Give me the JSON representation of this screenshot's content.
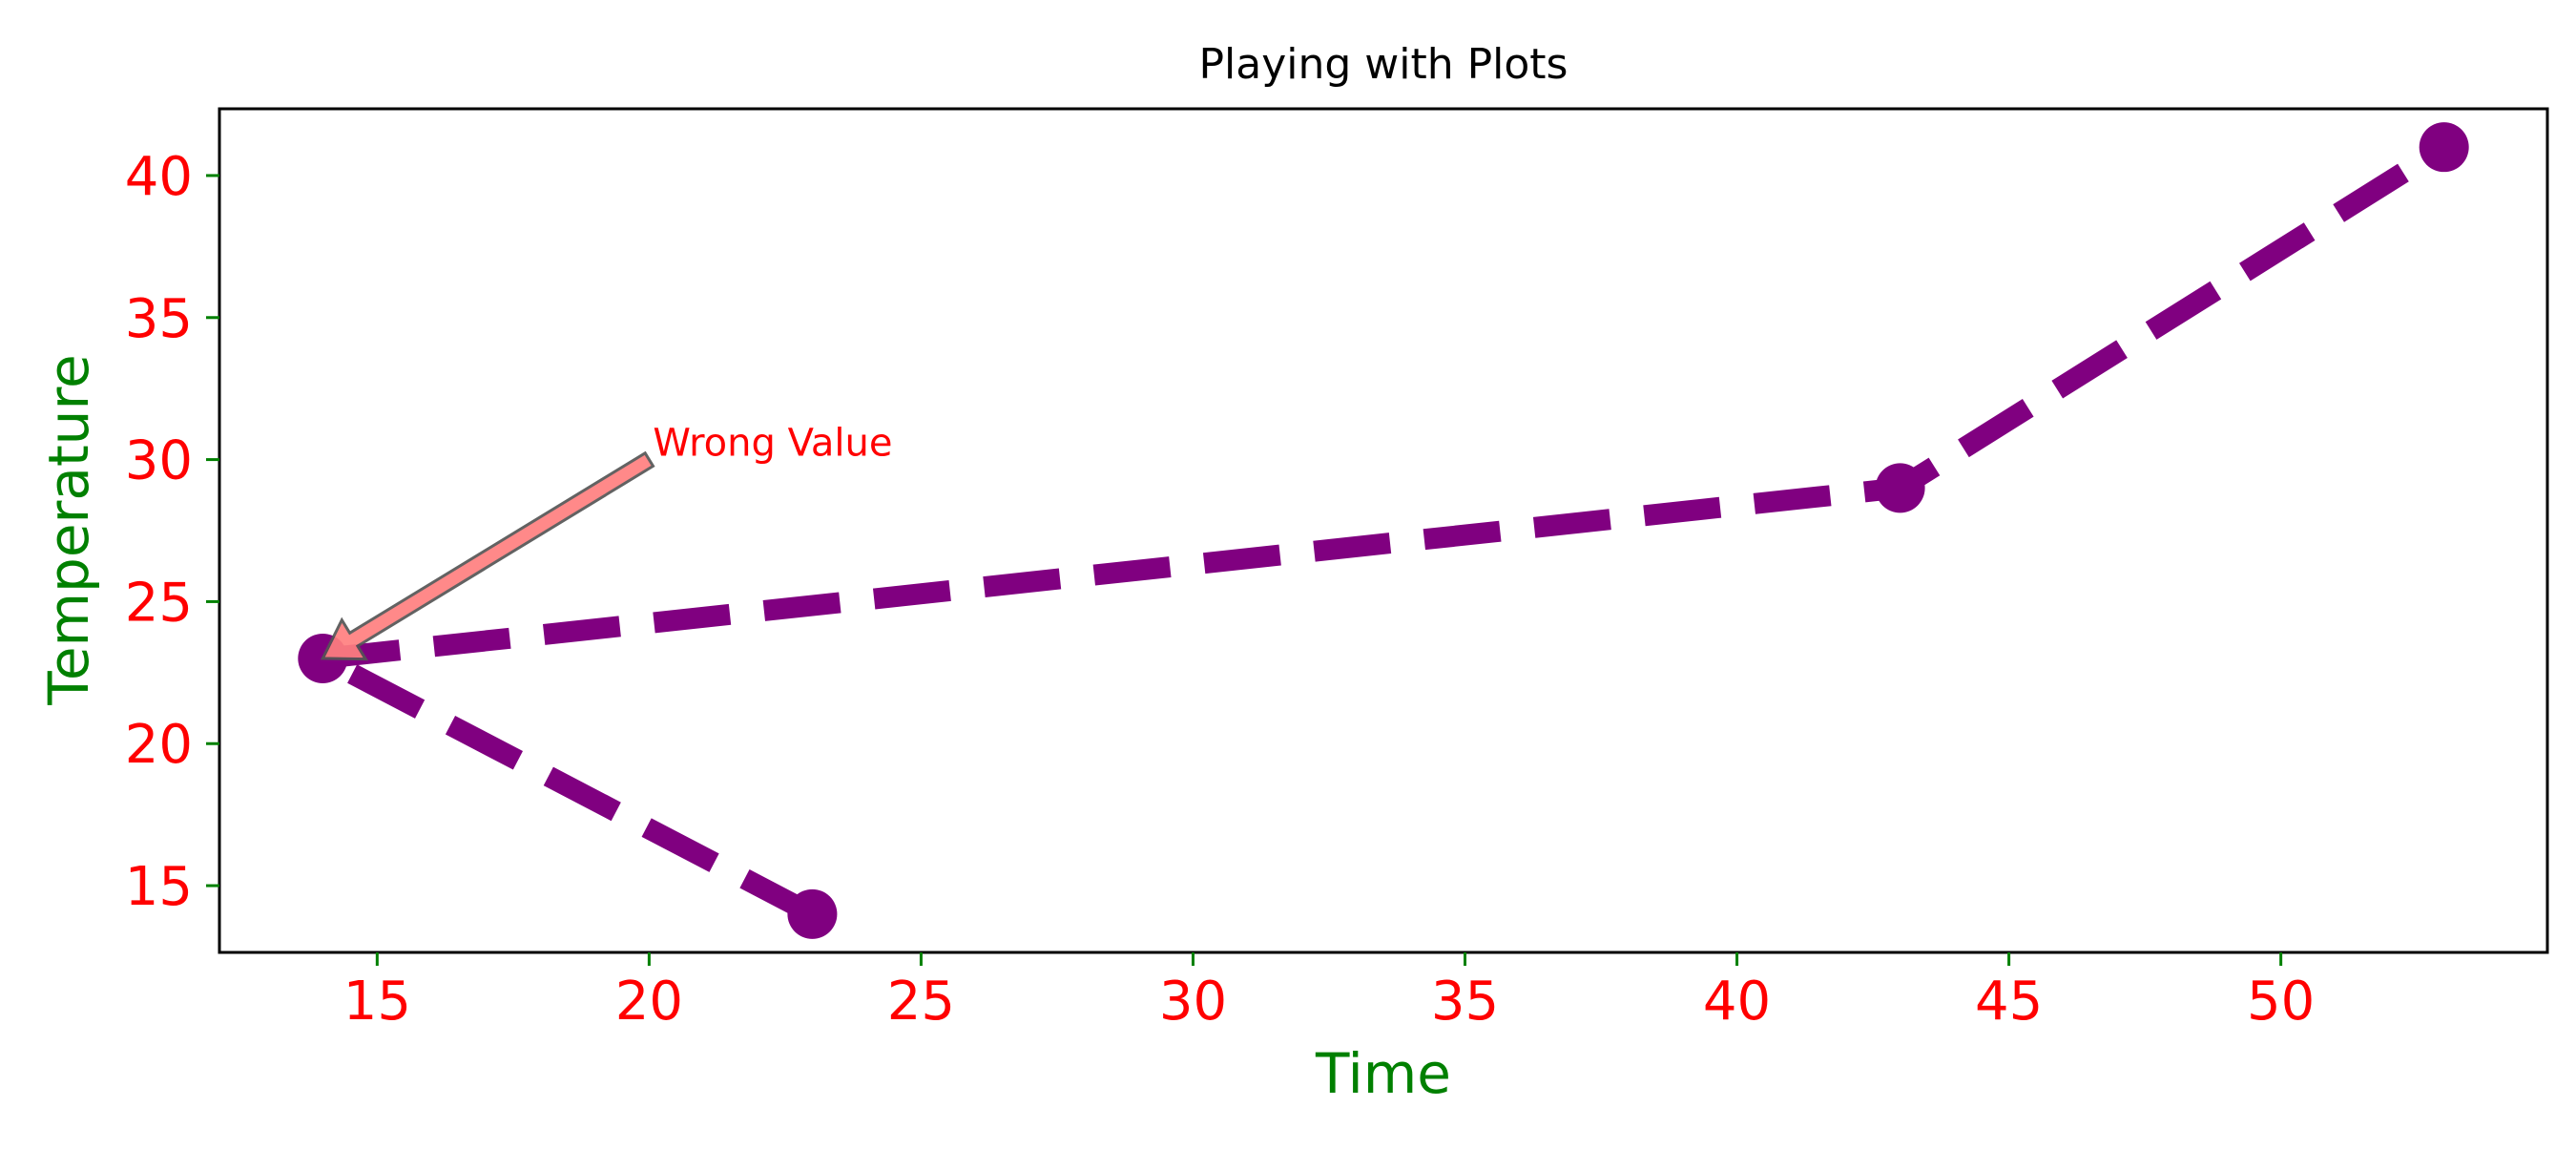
{
  "chart_data": {
    "type": "line",
    "title": "Playing with Plots",
    "xlabel": "Time",
    "ylabel": "Temperature",
    "xlim": [
      12.1,
      54.9
    ],
    "ylim": [
      12.65,
      42.35
    ],
    "xticks": [
      15,
      20,
      25,
      30,
      35,
      40,
      45,
      50
    ],
    "yticks": [
      15,
      20,
      25,
      30,
      35,
      40
    ],
    "grid": false,
    "series": [
      {
        "x": [
          23,
          14,
          43,
          53
        ],
        "y": [
          14,
          23,
          29,
          41
        ],
        "color": "#800080",
        "linestyle": "dashed",
        "marker": "circle"
      }
    ],
    "annotations": [
      {
        "text": "Wrong Value",
        "text_x": 20,
        "text_y": 30,
        "arrow_to_x": 14,
        "arrow_to_y": 23,
        "text_color": "#ff0000",
        "arrow_color": "#ff7f7f"
      }
    ],
    "colors": {
      "tick_labels": "#ff0000",
      "axis_labels": "#008000",
      "tick_marks": "#008000",
      "title": "#000000"
    }
  }
}
